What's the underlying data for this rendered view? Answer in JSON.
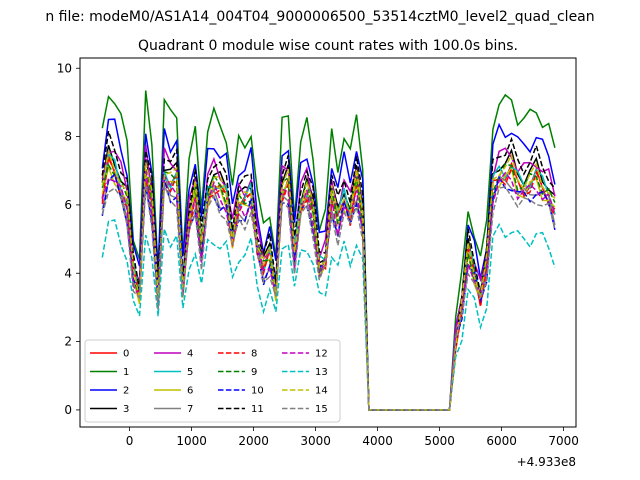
{
  "figure": {
    "suptitle": "n file: modeM0/AS1A14_004T04_9000006500_53514cztM0_level2_quad_clean",
    "title": "Quadrant 0 module wise count rates with 100.0s bins.",
    "x_offset_label": "+4.933e8"
  },
  "chart_data": {
    "type": "line",
    "title": "Quadrant 0 module wise count rates with 100.0s bins.",
    "xlabel": "",
    "ylabel": "",
    "x_offset": 493300000,
    "xlim": [
      -800,
      7200
    ],
    "ylim": [
      -0.5,
      10.3
    ],
    "xticks": [
      0,
      1000,
      2000,
      3000,
      4000,
      5000,
      6000,
      7000
    ],
    "yticks": [
      0,
      2,
      4,
      6,
      8,
      10
    ],
    "xtick_labels": [
      "0",
      "1000",
      "2000",
      "3000",
      "4000",
      "5000",
      "6000",
      "7000"
    ],
    "ytick_labels": [
      "0",
      "2",
      "4",
      "6",
      "8",
      "10"
    ],
    "grid": false,
    "legend_placement": "lower-left",
    "x": [
      -440,
      -340,
      -240,
      -140,
      -40,
      60,
      160,
      260,
      360,
      460,
      560,
      660,
      760,
      860,
      960,
      1060,
      1160,
      1260,
      1360,
      1460,
      1560,
      1660,
      1760,
      1860,
      1960,
      2060,
      2160,
      2260,
      2360,
      2460,
      2560,
      2660,
      2760,
      2860,
      2960,
      3060,
      3160,
      3260,
      3360,
      3460,
      3560,
      3660,
      3760,
      3860,
      3960,
      4060,
      5160,
      5260,
      5360,
      5460,
      5560,
      5660,
      5760,
      5860,
      5960,
      6060,
      6160,
      6260,
      6360,
      6460,
      6560,
      6660,
      6760,
      6860
    ],
    "base": [
      6.2,
      7.2,
      7.0,
      6.5,
      6.0,
      4.0,
      3.4,
      7.0,
      6.0,
      3.3,
      6.9,
      6.6,
      6.7,
      3.6,
      5.5,
      6.3,
      4.7,
      6.3,
      6.6,
      6.4,
      6.2,
      5.0,
      6.0,
      6.0,
      6.3,
      4.8,
      4.1,
      4.5,
      3.5,
      6.4,
      6.6,
      4.5,
      6.0,
      6.4,
      5.7,
      4.2,
      4.4,
      6.2,
      5.5,
      6.2,
      5.7,
      6.6,
      5.6,
      0.0,
      0.0,
      0.0,
      0.0,
      2.0,
      3.0,
      4.6,
      4.0,
      3.3,
      4.2,
      6.5,
      6.9,
      6.9,
      7.0,
      6.6,
      6.5,
      6.6,
      6.8,
      6.5,
      6.3,
      5.8
    ],
    "series": [
      {
        "name": "0",
        "color": "#ff0000",
        "style": "solid",
        "scale": 1.0
      },
      {
        "name": "1",
        "color": "#008000",
        "style": "solid",
        "scale": 1.3
      },
      {
        "name": "2",
        "color": "#0000ff",
        "style": "solid",
        "scale": 1.18
      },
      {
        "name": "3",
        "color": "#000000",
        "style": "solid",
        "scale": 1.05
      },
      {
        "name": "4",
        "color": "#bf00bf",
        "style": "solid",
        "scale": 1.08
      },
      {
        "name": "5",
        "color": "#00bfbf",
        "style": "solid",
        "scale": 1.02
      },
      {
        "name": "6",
        "color": "#bfbf00",
        "style": "solid",
        "scale": 0.98
      },
      {
        "name": "7",
        "color": "#808080",
        "style": "solid",
        "scale": 0.96
      },
      {
        "name": "8",
        "color": "#ff0000",
        "style": "dashed",
        "scale": 0.99
      },
      {
        "name": "9",
        "color": "#008000",
        "style": "dashed",
        "scale": 1.01
      },
      {
        "name": "10",
        "color": "#0000ff",
        "style": "dashed",
        "scale": 0.95
      },
      {
        "name": "11",
        "color": "#000000",
        "style": "dashed",
        "scale": 1.1
      },
      {
        "name": "12",
        "color": "#bf00bf",
        "style": "dashed",
        "scale": 0.97
      },
      {
        "name": "13",
        "color": "#00bfbf",
        "style": "dashed",
        "scale": 0.76
      },
      {
        "name": "14",
        "color": "#bfbf00",
        "style": "dashed",
        "scale": 1.03
      },
      {
        "name": "15",
        "color": "#808080",
        "style": "dashed",
        "scale": 0.92
      }
    ]
  }
}
